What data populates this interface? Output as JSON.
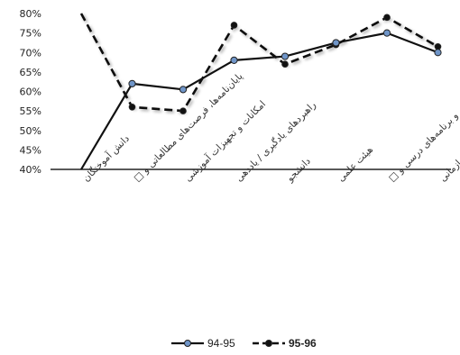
{
  "chart_data": {
    "type": "line",
    "title": "",
    "xlabel": "",
    "ylabel": "",
    "ylim": [
      40,
      80
    ],
    "yticks": [
      "80%",
      "75%",
      "70%",
      "65%",
      "60%",
      "55%",
      "50%",
      "45%",
      "40%"
    ],
    "grid": false,
    "legend_position": "bottom",
    "categories": [
      "دانش آموختگان",
      "پایان‌نامه‌ها، فرصت‌های مطالعاتی و □",
      "امکانات و تجهیزات آموزشی",
      "راهبردهای یادگیری / یاددهی",
      "دانشجو",
      "هیئت علمی",
      "دوره‌های آموزشی و برنامه‌های درسی و □",
      "رسالت، اهداف، جایگاه سازمانی"
    ],
    "series": [
      {
        "name": "94-95",
        "values": [
          40,
          62,
          60.5,
          68,
          69,
          72.5,
          75,
          70
        ],
        "color": "#111111",
        "marker_color": "#6f95c8",
        "style": "solid"
      },
      {
        "name": "95-96",
        "values": [
          80,
          56,
          55,
          77,
          67,
          72,
          79,
          71.5
        ],
        "color": "#111111",
        "marker_color": "#111111",
        "style": "dashed"
      }
    ]
  }
}
